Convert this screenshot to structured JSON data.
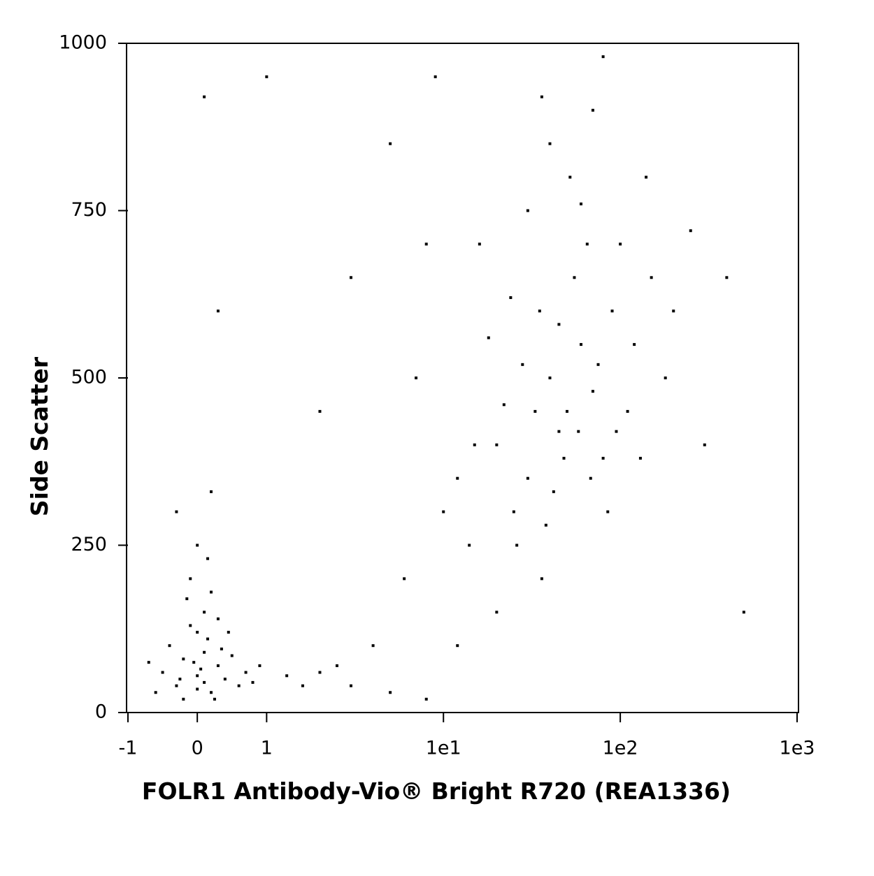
{
  "chart_data": {
    "type": "scatter",
    "x_label": "FOLR1 Antibody-Vio® Bright R720 (REA1336)",
    "y_label": "Side Scatter",
    "xscale": "biexponential",
    "xlim": [
      -1,
      1000
    ],
    "xticks": [
      -1,
      0,
      1,
      {
        "value": 10,
        "label": "1e1"
      },
      {
        "value": 100,
        "label": "1e2"
      },
      {
        "value": 1000,
        "label": "1e3"
      }
    ],
    "ylim": [
      0,
      1000
    ],
    "yticks": [
      0,
      250,
      500,
      750,
      1000
    ],
    "color": "#000000",
    "x": [
      -0.5,
      -0.3,
      -0.2,
      0,
      0.1,
      0.2,
      0.3,
      -0.4,
      0,
      0.1,
      -0.1,
      0.2,
      0.4,
      0.5,
      0.6,
      -0.6,
      -0.2,
      0.05,
      0.15,
      -0.1,
      0.3,
      0,
      0.15,
      -0.15,
      0.7,
      0.8,
      -0.7,
      0.25,
      0.35,
      -0.25,
      0,
      0.1,
      -0.05,
      0.45,
      0.9,
      1.3,
      1.6,
      2,
      -0.3,
      0.2,
      20,
      30,
      40,
      50,
      60,
      35,
      25,
      45,
      70,
      80,
      55,
      28,
      38,
      65,
      90,
      120,
      33,
      48,
      42,
      75,
      22,
      18,
      15,
      12,
      100,
      150,
      200,
      52,
      40,
      70,
      30,
      60,
      110,
      130,
      85,
      26,
      36,
      14,
      20,
      45,
      58,
      68,
      95,
      24,
      16,
      140,
      180,
      250,
      36,
      80,
      3,
      5,
      8,
      2.5,
      4,
      6,
      10,
      7,
      3,
      0.3,
      0.1,
      1,
      5,
      9,
      300,
      500,
      400,
      8,
      2,
      12
    ],
    "y": [
      60,
      40,
      80,
      55,
      90,
      30,
      70,
      100,
      120,
      150,
      200,
      180,
      50,
      85,
      40,
      30,
      20,
      65,
      110,
      130,
      140,
      250,
      230,
      170,
      60,
      45,
      75,
      20,
      95,
      50,
      35,
      45,
      75,
      120,
      70,
      55,
      40,
      60,
      300,
      330,
      400,
      350,
      500,
      450,
      550,
      600,
      300,
      420,
      480,
      380,
      650,
      520,
      280,
      700,
      600,
      550,
      450,
      380,
      330,
      520,
      460,
      560,
      400,
      350,
      700,
      650,
      600,
      800,
      850,
      900,
      750,
      760,
      450,
      380,
      300,
      250,
      200,
      250,
      150,
      580,
      420,
      350,
      420,
      620,
      700,
      800,
      500,
      720,
      920,
      980,
      40,
      30,
      20,
      70,
      100,
      200,
      300,
      500,
      650,
      600,
      920,
      950,
      850,
      950,
      400,
      150,
      650,
      700,
      450,
      100
    ]
  }
}
